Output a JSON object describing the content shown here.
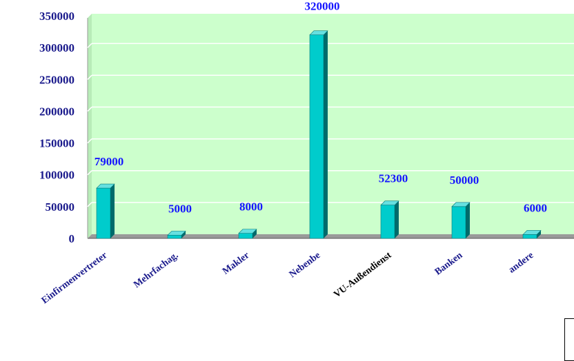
{
  "chart_data": {
    "type": "bar",
    "categories": [
      "Einfirmenvertreter",
      "Mehrfachag.",
      "Makler",
      "Nebenbe",
      "VU-Außendienst",
      "Banken",
      "andere"
    ],
    "values": [
      79000,
      5000,
      8000,
      320000,
      52300,
      50000,
      6000
    ],
    "data_labels": [
      "79000",
      "5000",
      "8000",
      "320000",
      "52300",
      "50000",
      "6000"
    ],
    "yticks": [
      "0",
      "50000",
      "100000",
      "150000",
      "200000",
      "250000",
      "300000",
      "350000"
    ],
    "ylim": [
      0,
      350000
    ],
    "grid": true,
    "legend": "bottom-right (clipped)",
    "colors": {
      "plot_background": "#ccffcc",
      "bar_front": "#00cccc",
      "bar_side": "#006b6b",
      "bar_top": "#66e0e0",
      "data_label": "#1515ff",
      "tick_label": "#1a1a8c"
    }
  }
}
